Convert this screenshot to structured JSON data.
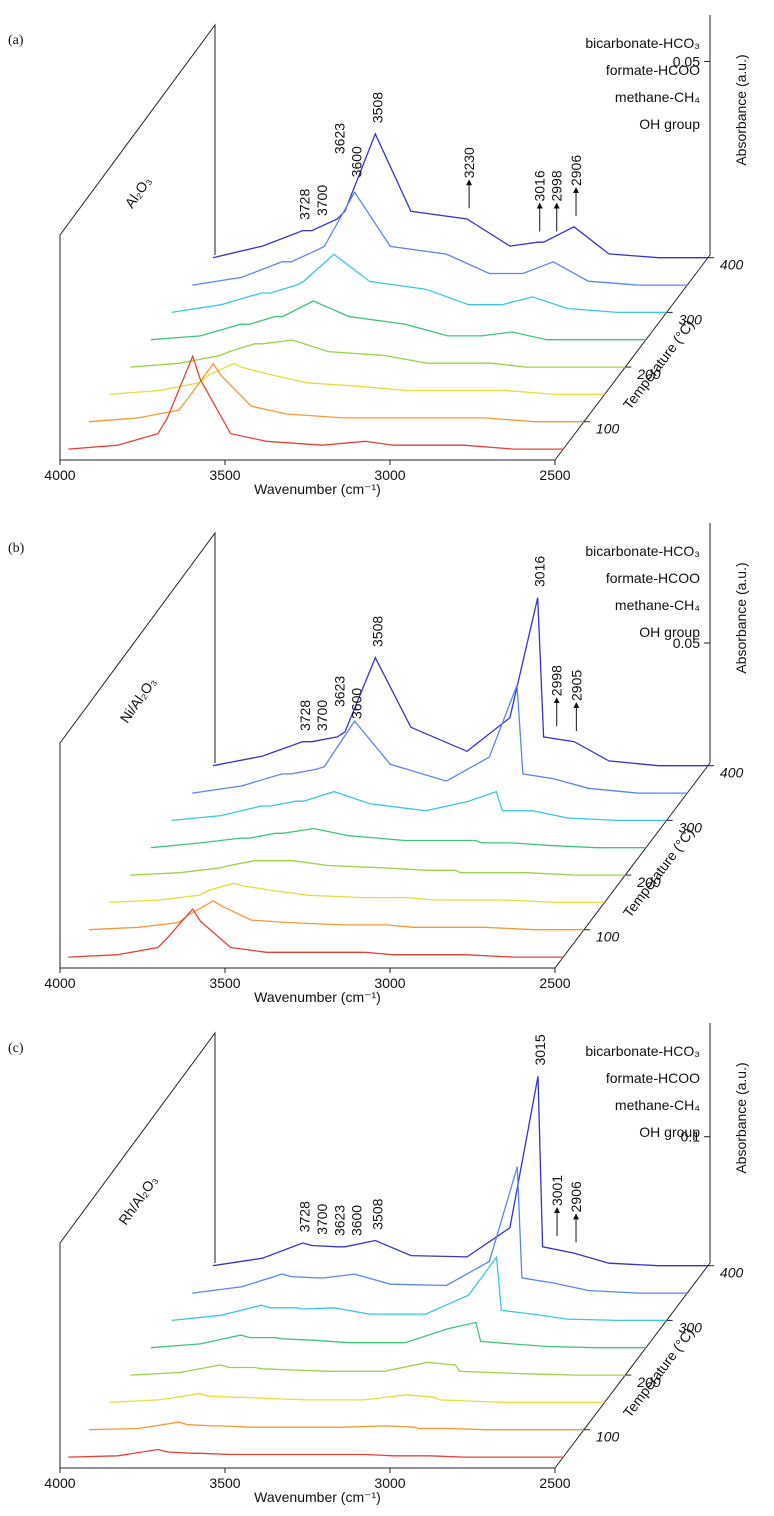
{
  "chart_data": [
    {
      "type": "waterfall3d",
      "panel_label": "(a)",
      "sample_label": "Al₂O₃",
      "x_label": "Wavenumber (cm⁻¹)",
      "z_label": "Temperature (°C)",
      "y_label": "Absorbance (a.u.)",
      "xlim": [
        4000,
        2500
      ],
      "xticks": [
        4000,
        3500,
        3000,
        2500
      ],
      "zlim": [
        30,
        405
      ],
      "zticks": [
        100,
        200,
        300,
        400
      ],
      "ylim": [
        0,
        0.062
      ],
      "yticks": [
        0.05
      ],
      "x": [
        4000,
        3850,
        3728,
        3700,
        3623,
        3600,
        3508,
        3400,
        3230,
        3100,
        3016,
        2998,
        2906,
        2800,
        2650,
        2500
      ],
      "series": [
        {
          "z": 50,
          "color": "#e8403a",
          "values": [
            0,
            0.001,
            0.004,
            0.008,
            0.024,
            0.018,
            0.004,
            0.002,
            0.001,
            0.002,
            0.001,
            0.001,
            0.001,
            0.001,
            0,
            0
          ]
        },
        {
          "z": 100,
          "color": "#f29a3a",
          "values": [
            0,
            0.001,
            0.003,
            0.006,
            0.015,
            0.012,
            0.004,
            0.002,
            0.001,
            0.001,
            0.001,
            0.001,
            0.001,
            0.001,
            0,
            0
          ]
        },
        {
          "z": 150,
          "color": "#e6de3c",
          "values": [
            0,
            0.001,
            0.003,
            0.005,
            0.008,
            0.007,
            0.005,
            0.003,
            0.002,
            0.001,
            0.001,
            0.001,
            0.001,
            0.001,
            0,
            0
          ]
        },
        {
          "z": 200,
          "color": "#9ad24a",
          "values": [
            0,
            0.001,
            0.003,
            0.004,
            0.006,
            0.006,
            0.007,
            0.004,
            0.003,
            0.001,
            0.001,
            0.001,
            0.001,
            0,
            0,
            0
          ]
        },
        {
          "z": 250,
          "color": "#44c47a",
          "values": [
            0,
            0.001,
            0.004,
            0.004,
            0.006,
            0.006,
            0.01,
            0.006,
            0.004,
            0.001,
            0.001,
            0.001,
            0.002,
            0,
            0,
            0
          ]
        },
        {
          "z": 300,
          "color": "#3cc6e2",
          "values": [
            0,
            0.002,
            0.005,
            0.005,
            0.007,
            0.008,
            0.015,
            0.008,
            0.006,
            0.002,
            0.002,
            0.002,
            0.004,
            0.001,
            0,
            0
          ]
        },
        {
          "z": 350,
          "color": "#5a86f0",
          "values": [
            0,
            0.002,
            0.006,
            0.006,
            0.009,
            0.01,
            0.024,
            0.01,
            0.008,
            0.003,
            0.003,
            0.003,
            0.006,
            0.001,
            0,
            0
          ]
        },
        {
          "z": 400,
          "color": "#3434cc",
          "values": [
            0,
            0.003,
            0.007,
            0.007,
            0.01,
            0.012,
            0.032,
            0.012,
            0.01,
            0.003,
            0.004,
            0.004,
            0.008,
            0.001,
            0,
            0
          ]
        }
      ],
      "legend": [
        {
          "label": "bicarbonate-HCO₃",
          "color": "#1f9a1f"
        },
        {
          "label": "formate-HCOO",
          "color": "#1a1ae0"
        },
        {
          "label": "methane-CH₄",
          "color": "#e020e0"
        },
        {
          "label": "OH group",
          "color": "#8b1a1a"
        }
      ],
      "annotations": [
        {
          "value": 3728,
          "color": "#8b1a1a",
          "arrow": false
        },
        {
          "value": 3700,
          "color": "#8b1a1a",
          "arrow": false
        },
        {
          "value": 3623,
          "color": "#1f9a1f",
          "arrow": false
        },
        {
          "value": 3600,
          "color": "#1f9a1f",
          "arrow": false
        },
        {
          "value": 3508,
          "color": "#8b1a1a",
          "arrow": false
        },
        {
          "value": 3230,
          "color": "#8b1a1a",
          "arrow": true
        },
        {
          "value": 3016,
          "color": "#e020e0",
          "arrow": true
        },
        {
          "value": 2998,
          "color": "#1a1ae0",
          "arrow": true
        },
        {
          "value": 2906,
          "color": "#1a1ae0",
          "arrow": true
        }
      ]
    },
    {
      "type": "waterfall3d",
      "panel_label": "(b)",
      "sample_label": "Ni/Al₂O₃",
      "x_label": "Wavenumber (cm⁻¹)",
      "z_label": "Temperature (°C)",
      "y_label": "Absorbance (a.u.)",
      "xlim": [
        4000,
        2500
      ],
      "xticks": [
        4000,
        3500,
        3000,
        2500
      ],
      "zlim": [
        30,
        405
      ],
      "zticks": [
        100,
        200,
        300,
        400
      ],
      "ylim": [
        0,
        0.1
      ],
      "yticks": [
        0.05
      ],
      "x": [
        4000,
        3850,
        3728,
        3700,
        3623,
        3600,
        3508,
        3400,
        3230,
        3100,
        3016,
        2998,
        2905,
        2800,
        2650,
        2500
      ],
      "series": [
        {
          "z": 50,
          "color": "#e8403a",
          "values": [
            0,
            0.001,
            0.004,
            0.008,
            0.02,
            0.015,
            0.004,
            0.002,
            0.002,
            0.002,
            0.001,
            0.001,
            0.001,
            0.001,
            0,
            0
          ]
        },
        {
          "z": 100,
          "color": "#f29a3a",
          "values": [
            0,
            0.001,
            0.003,
            0.006,
            0.012,
            0.01,
            0.004,
            0.003,
            0.002,
            0.002,
            0.001,
            0.001,
            0.001,
            0.001,
            0,
            0
          ]
        },
        {
          "z": 150,
          "color": "#e6de3c",
          "values": [
            0,
            0.001,
            0.003,
            0.005,
            0.008,
            0.007,
            0.005,
            0.003,
            0.002,
            0.002,
            0.001,
            0.001,
            0.001,
            0.001,
            0,
            0
          ]
        },
        {
          "z": 200,
          "color": "#9ad24a",
          "values": [
            0,
            0.001,
            0.003,
            0.004,
            0.006,
            0.006,
            0.006,
            0.004,
            0.003,
            0.002,
            0.002,
            0.001,
            0.001,
            0.001,
            0,
            0
          ]
        },
        {
          "z": 250,
          "color": "#44c47a",
          "values": [
            0,
            0.002,
            0.004,
            0.004,
            0.006,
            0.006,
            0.008,
            0.005,
            0.003,
            0.003,
            0.003,
            0.002,
            0.002,
            0.001,
            0,
            0
          ]
        },
        {
          "z": 300,
          "color": "#3cc6e2",
          "values": [
            0,
            0.002,
            0.006,
            0.006,
            0.008,
            0.008,
            0.012,
            0.007,
            0.004,
            0.008,
            0.012,
            0.004,
            0.004,
            0.001,
            0,
            0
          ]
        },
        {
          "z": 350,
          "color": "#5a86f0",
          "values": [
            0,
            0.003,
            0.008,
            0.008,
            0.01,
            0.011,
            0.03,
            0.012,
            0.005,
            0.015,
            0.045,
            0.008,
            0.006,
            0.002,
            0,
            0
          ]
        },
        {
          "z": 400,
          "color": "#3434cc",
          "values": [
            0,
            0.004,
            0.01,
            0.01,
            0.012,
            0.014,
            0.045,
            0.016,
            0.006,
            0.02,
            0.07,
            0.012,
            0.01,
            0.002,
            0,
            0
          ]
        }
      ],
      "legend": [
        {
          "label": "bicarbonate-HCO₃",
          "color": "#1f9a1f"
        },
        {
          "label": "formate-HCOO",
          "color": "#1a1ae0"
        },
        {
          "label": "methane-CH₄",
          "color": "#e020e0"
        },
        {
          "label": "OH group",
          "color": "#8b1a1a"
        }
      ],
      "annotations": [
        {
          "value": 3728,
          "color": "#8b1a1a",
          "arrow": false
        },
        {
          "value": 3700,
          "color": "#8b1a1a",
          "arrow": false
        },
        {
          "value": 3623,
          "color": "#1f9a1f",
          "arrow": false
        },
        {
          "value": 3600,
          "color": "#1f9a1f",
          "arrow": false
        },
        {
          "value": 3508,
          "color": "#8b1a1a",
          "arrow": false
        },
        {
          "value": 3016,
          "color": "#e020e0",
          "arrow": false
        },
        {
          "value": 2998,
          "color": "#1a1ae0",
          "arrow": true
        },
        {
          "value": 2905,
          "color": "#1a1ae0",
          "arrow": true
        }
      ]
    },
    {
      "type": "waterfall3d",
      "panel_label": "(c)",
      "sample_label": "Rh/Al₂O₃",
      "x_label": "Wavenumber (cm⁻¹)",
      "z_label": "Temperature (°C)",
      "y_label": "Absorbance (a.u.)",
      "xlim": [
        4000,
        2500
      ],
      "xticks": [
        4000,
        3500,
        3000,
        2500
      ],
      "zlim": [
        30,
        405
      ],
      "zticks": [
        100,
        200,
        300,
        400
      ],
      "ylim": [
        0,
        0.19
      ],
      "yticks": [
        0.1
      ],
      "x": [
        4000,
        3850,
        3728,
        3700,
        3623,
        3600,
        3508,
        3400,
        3230,
        3100,
        3015,
        3001,
        2906,
        2800,
        2650,
        2500
      ],
      "series": [
        {
          "z": 50,
          "color": "#e8403a",
          "values": [
            0,
            0.001,
            0.006,
            0.004,
            0.003,
            0.003,
            0.002,
            0.002,
            0.002,
            0.002,
            0.001,
            0.001,
            0.001,
            0,
            0,
            0
          ]
        },
        {
          "z": 100,
          "color": "#f29a3a",
          "values": [
            0,
            0.001,
            0.006,
            0.004,
            0.003,
            0.003,
            0.002,
            0.002,
            0.002,
            0.003,
            0.002,
            0.001,
            0.001,
            0,
            0,
            0
          ]
        },
        {
          "z": 150,
          "color": "#e6de3c",
          "values": [
            0,
            0.002,
            0.007,
            0.005,
            0.004,
            0.004,
            0.003,
            0.002,
            0.002,
            0.006,
            0.004,
            0.002,
            0.001,
            0,
            0,
            0
          ]
        },
        {
          "z": 200,
          "color": "#9ad24a",
          "values": [
            0,
            0.002,
            0.008,
            0.006,
            0.006,
            0.005,
            0.004,
            0.003,
            0.003,
            0.01,
            0.008,
            0.003,
            0.002,
            0.001,
            0,
            0
          ]
        },
        {
          "z": 250,
          "color": "#44c47a",
          "values": [
            0,
            0.003,
            0.01,
            0.008,
            0.008,
            0.007,
            0.006,
            0.004,
            0.004,
            0.015,
            0.02,
            0.005,
            0.003,
            0.001,
            0,
            0
          ]
        },
        {
          "z": 300,
          "color": "#3cc6e2",
          "values": [
            0,
            0.004,
            0.012,
            0.01,
            0.01,
            0.009,
            0.01,
            0.005,
            0.005,
            0.02,
            0.05,
            0.008,
            0.005,
            0.001,
            0,
            0
          ]
        },
        {
          "z": 350,
          "color": "#5a86f0",
          "values": [
            0,
            0.005,
            0.015,
            0.013,
            0.012,
            0.012,
            0.015,
            0.007,
            0.006,
            0.025,
            0.1,
            0.012,
            0.008,
            0.002,
            0,
            0
          ]
        },
        {
          "z": 400,
          "color": "#3434cc",
          "values": [
            0,
            0.006,
            0.018,
            0.016,
            0.015,
            0.015,
            0.02,
            0.008,
            0.007,
            0.03,
            0.15,
            0.015,
            0.01,
            0.002,
            0,
            0
          ]
        }
      ],
      "legend": [
        {
          "label": "bicarbonate-HCO₃",
          "color": "#1f9a1f"
        },
        {
          "label": "formate-HCOO",
          "color": "#1a1ae0"
        },
        {
          "label": "methane-CH₄",
          "color": "#e020e0"
        },
        {
          "label": "OH group",
          "color": "#8b1a1a"
        }
      ],
      "annotations": [
        {
          "value": 3728,
          "color": "#8b1a1a",
          "arrow": false
        },
        {
          "value": 3700,
          "color": "#8b1a1a",
          "arrow": false
        },
        {
          "value": 3623,
          "color": "#1f9a1f",
          "arrow": false
        },
        {
          "value": 3600,
          "color": "#1f9a1f",
          "arrow": false
        },
        {
          "value": 3508,
          "color": "#8b1a1a",
          "arrow": false
        },
        {
          "value": 3015,
          "color": "#e020e0",
          "arrow": false
        },
        {
          "value": 3001,
          "color": "#1a1ae0",
          "arrow": true
        },
        {
          "value": 2906,
          "color": "#1a1ae0",
          "arrow": true
        }
      ]
    }
  ]
}
